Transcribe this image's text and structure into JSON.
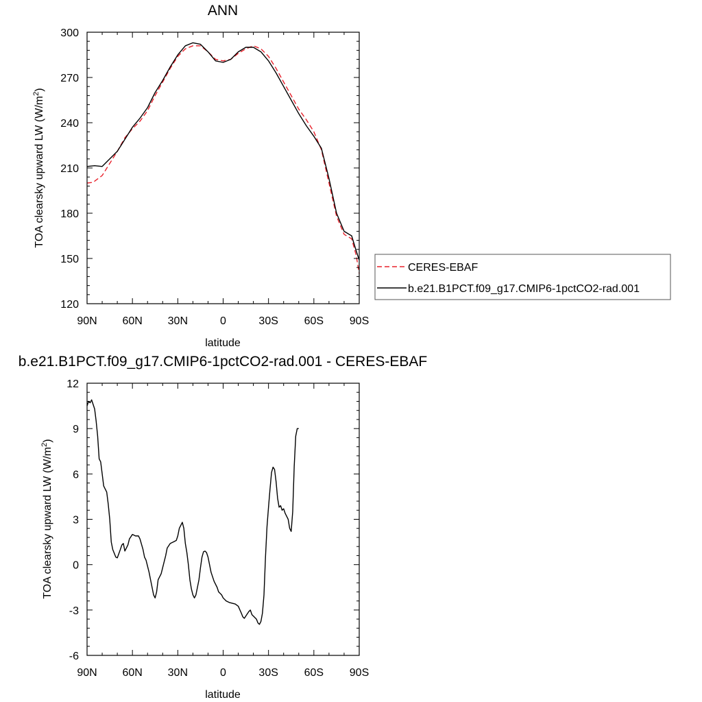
{
  "chart_data": [
    {
      "type": "line",
      "title": "ANN",
      "xlabel": "latitude",
      "ylabel": "TOA clearsky upward LW (W/m²)",
      "ylabel_parts": {
        "main": "TOA clearsky upward LW (W/m",
        "sup": "2",
        "end": ")"
      },
      "xlim": [
        90,
        -90
      ],
      "ylim": [
        120,
        300
      ],
      "x_ticks": [
        90,
        60,
        30,
        0,
        -30,
        -60,
        -90
      ],
      "x_tick_labels": [
        "90N",
        "60N",
        "30N",
        "0",
        "30S",
        "60S",
        "90S"
      ],
      "y_ticks": [
        120,
        150,
        180,
        210,
        240,
        270,
        300
      ],
      "y_tick_labels": [
        "120",
        "150",
        "180",
        "210",
        "240",
        "270",
        "300"
      ],
      "grid": false,
      "legend_position": "right",
      "series": [
        {
          "name": "CERES-EBAF",
          "color": "#e8202a",
          "dash": "dashed",
          "points": [
            [
              90,
              200
            ],
            [
              86,
              200.5
            ],
            [
              80,
              205
            ],
            [
              75,
              213
            ],
            [
              70,
              221
            ],
            [
              65,
              230
            ],
            [
              60,
              236
            ],
            [
              55,
              241
            ],
            [
              50,
              248
            ],
            [
              45,
              258
            ],
            [
              40,
              267
            ],
            [
              35,
              276
            ],
            [
              30,
              284
            ],
            [
              25,
              289
            ],
            [
              20,
              291
            ],
            [
              15,
              291
            ],
            [
              10,
              287
            ],
            [
              5,
              282
            ],
            [
              0,
              281
            ],
            [
              -5,
              282
            ],
            [
              -10,
              286
            ],
            [
              -15,
              289
            ],
            [
              -20,
              291
            ],
            [
              -25,
              289
            ],
            [
              -30,
              284
            ],
            [
              -35,
              276
            ],
            [
              -40,
              267
            ],
            [
              -45,
              258
            ],
            [
              -50,
              249
            ],
            [
              -55,
              242
            ],
            [
              -60,
              234
            ],
            [
              -65,
              222
            ],
            [
              -70,
              200
            ],
            [
              -75,
              178
            ],
            [
              -80,
              166
            ],
            [
              -85,
              163
            ],
            [
              -88,
              152
            ],
            [
              -90,
              140
            ]
          ]
        },
        {
          "name": "b.e21.B1PCT.f09_g17.CMIP6-1pctCO2-rad.001",
          "color": "#000000",
          "dash": "solid",
          "points": [
            [
              90,
              211
            ],
            [
              85,
              211.5
            ],
            [
              80,
              211
            ],
            [
              75,
              216
            ],
            [
              70,
              221
            ],
            [
              65,
              229
            ],
            [
              60,
              237
            ],
            [
              55,
              243
            ],
            [
              50,
              250
            ],
            [
              45,
              260
            ],
            [
              40,
              268
            ],
            [
              35,
              277
            ],
            [
              30,
              285
            ],
            [
              25,
              291
            ],
            [
              20,
              293
            ],
            [
              15,
              292
            ],
            [
              10,
              287
            ],
            [
              5,
              281
            ],
            [
              0,
              280
            ],
            [
              -5,
              282
            ],
            [
              -10,
              287
            ],
            [
              -15,
              290
            ],
            [
              -20,
              290
            ],
            [
              -25,
              287
            ],
            [
              -30,
              281
            ],
            [
              -35,
              273
            ],
            [
              -40,
              264
            ],
            [
              -45,
              255
            ],
            [
              -50,
              246
            ],
            [
              -55,
              238
            ],
            [
              -60,
              231
            ],
            [
              -65,
              223
            ],
            [
              -70,
              203
            ],
            [
              -75,
              180
            ],
            [
              -80,
              168
            ],
            [
              -85,
              165
            ],
            [
              -88,
              155
            ],
            [
              -90,
              149
            ]
          ]
        }
      ]
    },
    {
      "type": "line",
      "title": "b.e21.B1PCT.f09_g17.CMIP6-1pctCO2-rad.001 - CERES-EBAF",
      "xlabel": "latitude",
      "ylabel": "TOA clearsky upward LW (W/m²)",
      "ylabel_parts": {
        "main": "TOA clearsky upward LW (W/m",
        "sup": "2",
        "end": ")"
      },
      "xlim": [
        90,
        -90
      ],
      "ylim": [
        -6,
        12
      ],
      "x_ticks": [
        90,
        60,
        30,
        0,
        -30,
        -60,
        -90
      ],
      "x_tick_labels": [
        "90N",
        "60N",
        "30N",
        "0",
        "30S",
        "60S",
        "90S"
      ],
      "y_ticks": [
        -6,
        -3,
        0,
        3,
        6,
        9,
        12
      ],
      "y_tick_labels": [
        "-6",
        "-3",
        "0",
        "3",
        "6",
        "9",
        "12"
      ],
      "grid": false,
      "series": [
        {
          "color": "#000000",
          "dash": "solid",
          "points": [
            [
              90,
              10.5
            ],
            [
              89,
              10.8
            ],
            [
              88,
              10.7
            ],
            [
              87,
              10.9
            ],
            [
              85,
              10.3
            ],
            [
              84,
              9.5
            ],
            [
              83,
              8.5
            ],
            [
              82,
              7.0
            ],
            [
              81,
              6.8
            ],
            [
              80,
              6.0
            ],
            [
              79,
              5.2
            ],
            [
              77,
              4.8
            ],
            [
              76,
              4.0
            ],
            [
              75,
              3.0
            ],
            [
              74,
              1.5
            ],
            [
              73,
              1.0
            ],
            [
              71,
              0.5
            ],
            [
              70,
              0.45
            ],
            [
              68,
              1.0
            ],
            [
              67,
              1.3
            ],
            [
              66,
              1.4
            ],
            [
              65,
              0.9
            ],
            [
              63,
              1.3
            ],
            [
              62,
              1.7
            ],
            [
              60,
              2.0
            ],
            [
              58,
              1.9
            ],
            [
              56,
              1.9
            ],
            [
              55,
              1.7
            ],
            [
              53,
              1.0
            ],
            [
              52,
              0.5
            ],
            [
              51,
              0.3
            ],
            [
              49,
              -0.5
            ],
            [
              48,
              -1.0
            ],
            [
              46,
              -2.0
            ],
            [
              45,
              -2.2
            ],
            [
              44,
              -1.8
            ],
            [
              43,
              -1.0
            ],
            [
              41,
              -0.6
            ],
            [
              40,
              -0.2
            ],
            [
              38,
              0.6
            ],
            [
              37,
              1.1
            ],
            [
              35,
              1.4
            ],
            [
              33,
              1.5
            ],
            [
              31,
              1.6
            ],
            [
              30,
              1.9
            ],
            [
              29,
              2.4
            ],
            [
              27,
              2.8
            ],
            [
              26,
              2.4
            ],
            [
              25,
              1.4
            ],
            [
              24,
              0.8
            ],
            [
              23,
              0.0
            ],
            [
              22,
              -1.0
            ],
            [
              21,
              -1.6
            ],
            [
              20,
              -2.0
            ],
            [
              19,
              -2.2
            ],
            [
              18,
              -2.0
            ],
            [
              16,
              -1.0
            ],
            [
              15,
              -0.2
            ],
            [
              14,
              0.5
            ],
            [
              13,
              0.85
            ],
            [
              12,
              0.9
            ],
            [
              11,
              0.8
            ],
            [
              10,
              0.5
            ],
            [
              9,
              0.0
            ],
            [
              8,
              -0.5
            ],
            [
              6,
              -1.1
            ],
            [
              4,
              -1.5
            ],
            [
              3,
              -1.8
            ],
            [
              1,
              -2.0
            ],
            [
              0,
              -2.2
            ],
            [
              -2,
              -2.4
            ],
            [
              -4,
              -2.5
            ],
            [
              -6,
              -2.55
            ],
            [
              -8,
              -2.6
            ],
            [
              -10,
              -2.75
            ],
            [
              -12,
              -3.2
            ],
            [
              -13,
              -3.45
            ],
            [
              -14,
              -3.55
            ],
            [
              -15,
              -3.4
            ],
            [
              -17,
              -3.1
            ],
            [
              -18,
              -3.0
            ],
            [
              -19,
              -3.3
            ],
            [
              -21,
              -3.5
            ],
            [
              -22,
              -3.6
            ],
            [
              -23,
              -3.85
            ],
            [
              -24,
              -3.95
            ],
            [
              -25,
              -3.75
            ],
            [
              -26,
              -3.2
            ],
            [
              -27,
              -2.0
            ],
            [
              -28,
              0.5
            ],
            [
              -29,
              2.5
            ],
            [
              -30,
              3.8
            ],
            [
              -31,
              5.0
            ],
            [
              -32,
              6.1
            ],
            [
              -33,
              6.45
            ],
            [
              -34,
              6.3
            ],
            [
              -35,
              5.5
            ],
            [
              -36,
              4.4
            ],
            [
              -37,
              3.8
            ],
            [
              -38,
              3.9
            ],
            [
              -39,
              3.6
            ],
            [
              -40,
              3.7
            ],
            [
              -41,
              3.4
            ],
            [
              -42,
              3.2
            ],
            [
              -43,
              3.0
            ],
            [
              -44,
              2.4
            ],
            [
              -45,
              2.2
            ],
            [
              -46,
              3.5
            ],
            [
              -47,
              6.5
            ],
            [
              -48,
              8.5
            ],
            [
              -49,
              9.0
            ],
            [
              -50,
              9.0
            ]
          ]
        }
      ]
    }
  ]
}
